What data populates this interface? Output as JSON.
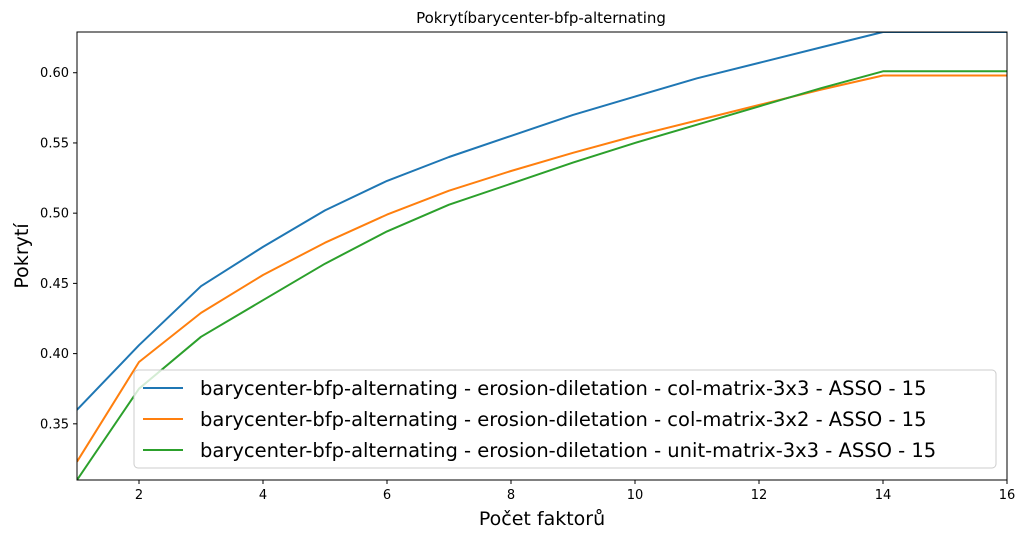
{
  "chart_data": {
    "type": "line",
    "title": "Pokrytíbarycenter-bfp-alternating",
    "xlabel": "Počet faktorů",
    "ylabel": "Pokrytí",
    "xlim": [
      1,
      16
    ],
    "ylim": [
      0.31,
      0.629
    ],
    "xticks": [
      2,
      4,
      6,
      8,
      10,
      12,
      14,
      16
    ],
    "yticks": [
      0.35,
      0.4,
      0.45,
      0.5,
      0.55,
      0.6
    ],
    "grid": false,
    "legend_position": "lower-right",
    "x": [
      1,
      2,
      3,
      4,
      5,
      6,
      7,
      8,
      9,
      10,
      11,
      12,
      13,
      14,
      15,
      16
    ],
    "series": [
      {
        "name": "barycenter-bfp-alternating - erosion-diletation - col-matrix-3x3 - ASSO - 15",
        "color": "#1f77b4",
        "values": [
          0.36,
          0.406,
          0.448,
          0.476,
          0.502,
          0.523,
          0.54,
          0.555,
          0.57,
          0.583,
          0.596,
          0.607,
          0.618,
          0.629,
          0.629,
          0.629
        ]
      },
      {
        "name": "barycenter-bfp-alternating - erosion-diletation - col-matrix-3x2 - ASSO - 15",
        "color": "#ff7f0e",
        "values": [
          0.323,
          0.394,
          0.429,
          0.456,
          0.479,
          0.499,
          0.516,
          0.53,
          0.543,
          0.555,
          0.566,
          0.577,
          0.588,
          0.598,
          0.598,
          0.598
        ]
      },
      {
        "name": "barycenter-bfp-alternating - erosion-diletation - unit-matrix-3x3 - ASSO - 15",
        "color": "#2ca02c",
        "values": [
          0.31,
          0.375,
          0.412,
          0.438,
          0.464,
          0.487,
          0.506,
          0.521,
          0.536,
          0.55,
          0.563,
          0.576,
          0.589,
          0.601,
          0.601,
          0.601
        ]
      }
    ]
  }
}
